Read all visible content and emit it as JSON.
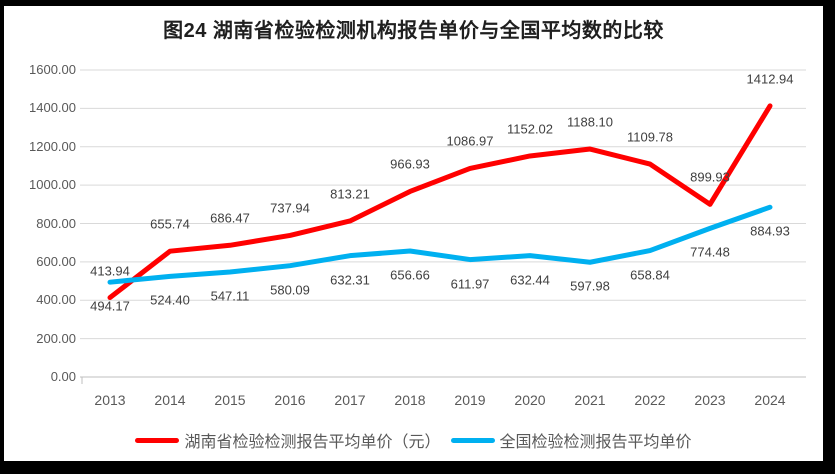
{
  "title": "图24 湖南省检验检测机构报告单价与全国平均数的比较",
  "chart_data": {
    "type": "line",
    "categories": [
      "2013",
      "2014",
      "2015",
      "2016",
      "2017",
      "2018",
      "2019",
      "2020",
      "2021",
      "2022",
      "2023",
      "2024"
    ],
    "series": [
      {
        "name": "湖南省检验检测报告平均单价（元）",
        "color": "#FF0000",
        "values": [
          413.94,
          655.74,
          686.47,
          737.94,
          813.21,
          966.93,
          1086.97,
          1152.02,
          1188.1,
          1109.78,
          899.93,
          1412.94
        ],
        "labels": [
          "413.94",
          "655.74",
          "686.47",
          "737.94",
          "813.21",
          "966.93",
          "1086.97",
          "1152.02",
          "1188.10",
          "1109.78",
          "899.93",
          "1412.94"
        ]
      },
      {
        "name": "全国检验检测报告平均单价",
        "color": "#00B0F0",
        "values": [
          494.17,
          524.4,
          547.11,
          580.09,
          632.31,
          656.66,
          611.97,
          632.44,
          597.98,
          658.84,
          774.48,
          884.93
        ],
        "labels": [
          "494.17",
          "524.40",
          "547.11",
          "580.09",
          "632.31",
          "656.66",
          "611.97",
          "632.44",
          "597.98",
          "658.84",
          "774.48",
          "884.93"
        ]
      }
    ],
    "ylim": [
      0,
      1600
    ],
    "yticks": [
      0,
      200,
      400,
      600,
      800,
      1000,
      1200,
      1400,
      1600
    ],
    "ytick_labels": [
      "0.00",
      "200.00",
      "400.00",
      "600.00",
      "800.00",
      "1000.00",
      "1200.00",
      "1400.00",
      "1600.00"
    ],
    "grid": true,
    "data_labels": true,
    "legend_position": "bottom",
    "gridline_color": "#D9D9D9",
    "axis_color": "#BFBFBF"
  }
}
